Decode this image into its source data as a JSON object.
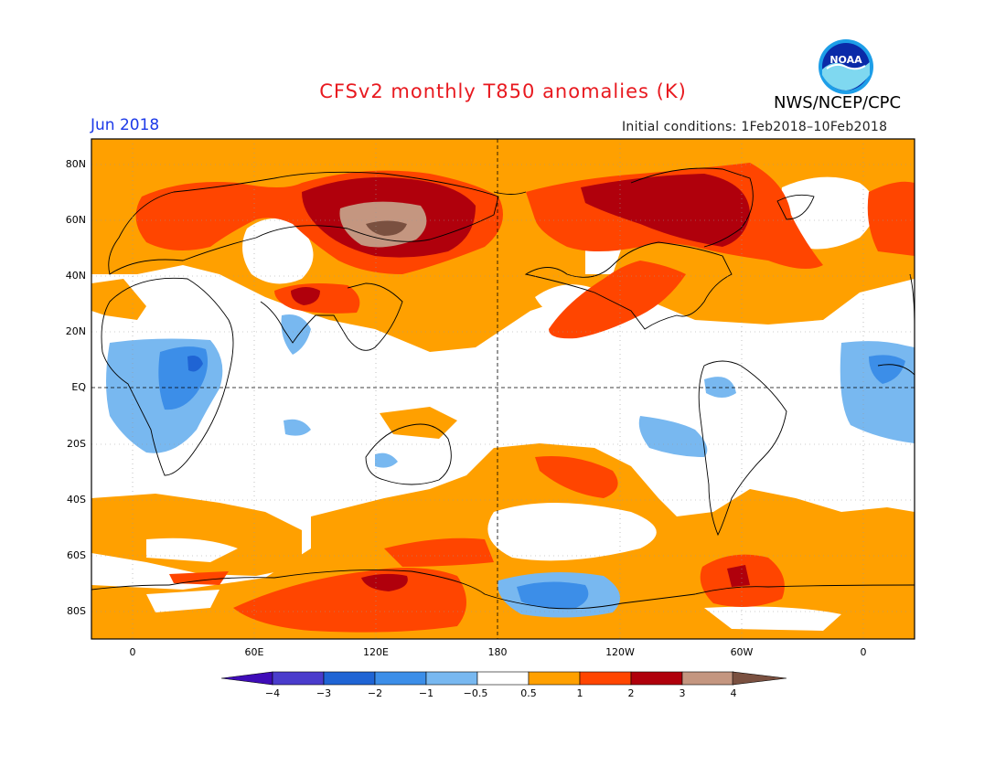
{
  "header": {
    "title": "CFSv2 monthly T850 anomalies (K)",
    "org": "NWS/NCEP/CPC",
    "month": "Jun 2018",
    "initial_conditions": "Initial conditions: 1Feb2018–10Feb2018",
    "logo_text": "NOAA"
  },
  "colors": {
    "title": "#e8191f",
    "month": "#1c39e8",
    "land_outline": "#000000"
  },
  "axes": {
    "lat_labels": [
      "80N",
      "60N",
      "40N",
      "20N",
      "EQ",
      "20S",
      "40S",
      "60S",
      "80S"
    ],
    "lon_labels": [
      "0",
      "60E",
      "120E",
      "180",
      "120W",
      "60W",
      "0"
    ]
  },
  "colorbar": {
    "labels": [
      "−4",
      "−3",
      "−2",
      "−1",
      "−0.5",
      "0.5",
      "1",
      "2",
      "3",
      "4"
    ],
    "colors": [
      "#3f0cb8",
      "#4a3ccc",
      "#1f64d4",
      "#3c8ee8",
      "#78b8f0",
      "#ffffff",
      "#ffa000",
      "#ff4500",
      "#b0000c",
      "#c49680",
      "#7a5040"
    ]
  }
}
